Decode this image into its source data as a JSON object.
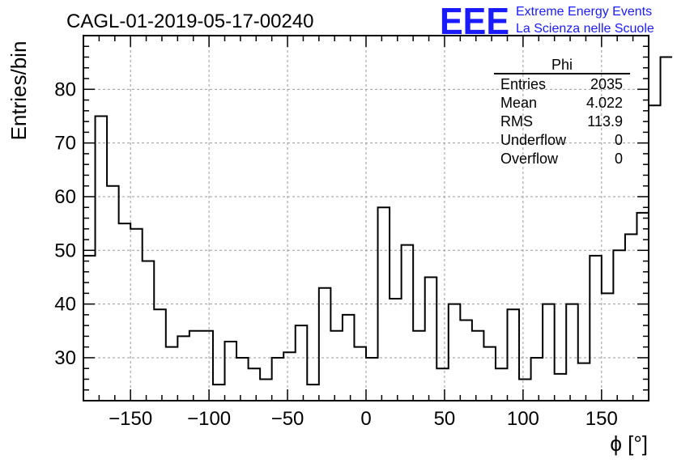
{
  "header": {
    "title": "CAGL-01-2019-05-17-00240",
    "logo_text": "EEE",
    "logo_line1": "Extreme Energy Events",
    "logo_line2": "La Scienza nelle Scuole",
    "logo_color": "#1a1aff"
  },
  "stats": {
    "name": "Phi",
    "rows": [
      {
        "label": "Entries",
        "value": "2035"
      },
      {
        "label": "Mean",
        "value": "4.022"
      },
      {
        "label": "RMS",
        "value": "113.9"
      },
      {
        "label": "Underflow",
        "value": "0"
      },
      {
        "label": "Overflow",
        "value": "0"
      }
    ]
  },
  "chart_data": {
    "type": "histogram",
    "title": "CAGL-01-2019-05-17-00240",
    "xlabel": "ϕ [°]",
    "ylabel": "Entries/bin",
    "xlim": [
      -180,
      180
    ],
    "ylim": [
      22,
      90
    ],
    "bin_width": 7.5,
    "bin_start": -180,
    "values": [
      49,
      75,
      62,
      55,
      54,
      48,
      39,
      32,
      34,
      35,
      35,
      25,
      33,
      30,
      28,
      26,
      30,
      31,
      36,
      25,
      43,
      35,
      38,
      32,
      30,
      58,
      41,
      51,
      35,
      45,
      28,
      40,
      37,
      35,
      32,
      28,
      39,
      26,
      30,
      40,
      27,
      40,
      29,
      49,
      42,
      50,
      53,
      57,
      77,
      86
    ],
    "x_ticks": [
      -150,
      -100,
      -50,
      0,
      50,
      100,
      150
    ],
    "x_tick_labels": [
      "−150",
      "−100",
      "−50",
      "0",
      "50",
      "100",
      "150"
    ],
    "y_ticks": [
      30,
      40,
      50,
      60,
      70,
      80
    ],
    "y_tick_labels": [
      "30",
      "40",
      "50",
      "60",
      "70",
      "80"
    ],
    "grid": true,
    "line_color": "#000000",
    "grid_color": "#999999"
  }
}
